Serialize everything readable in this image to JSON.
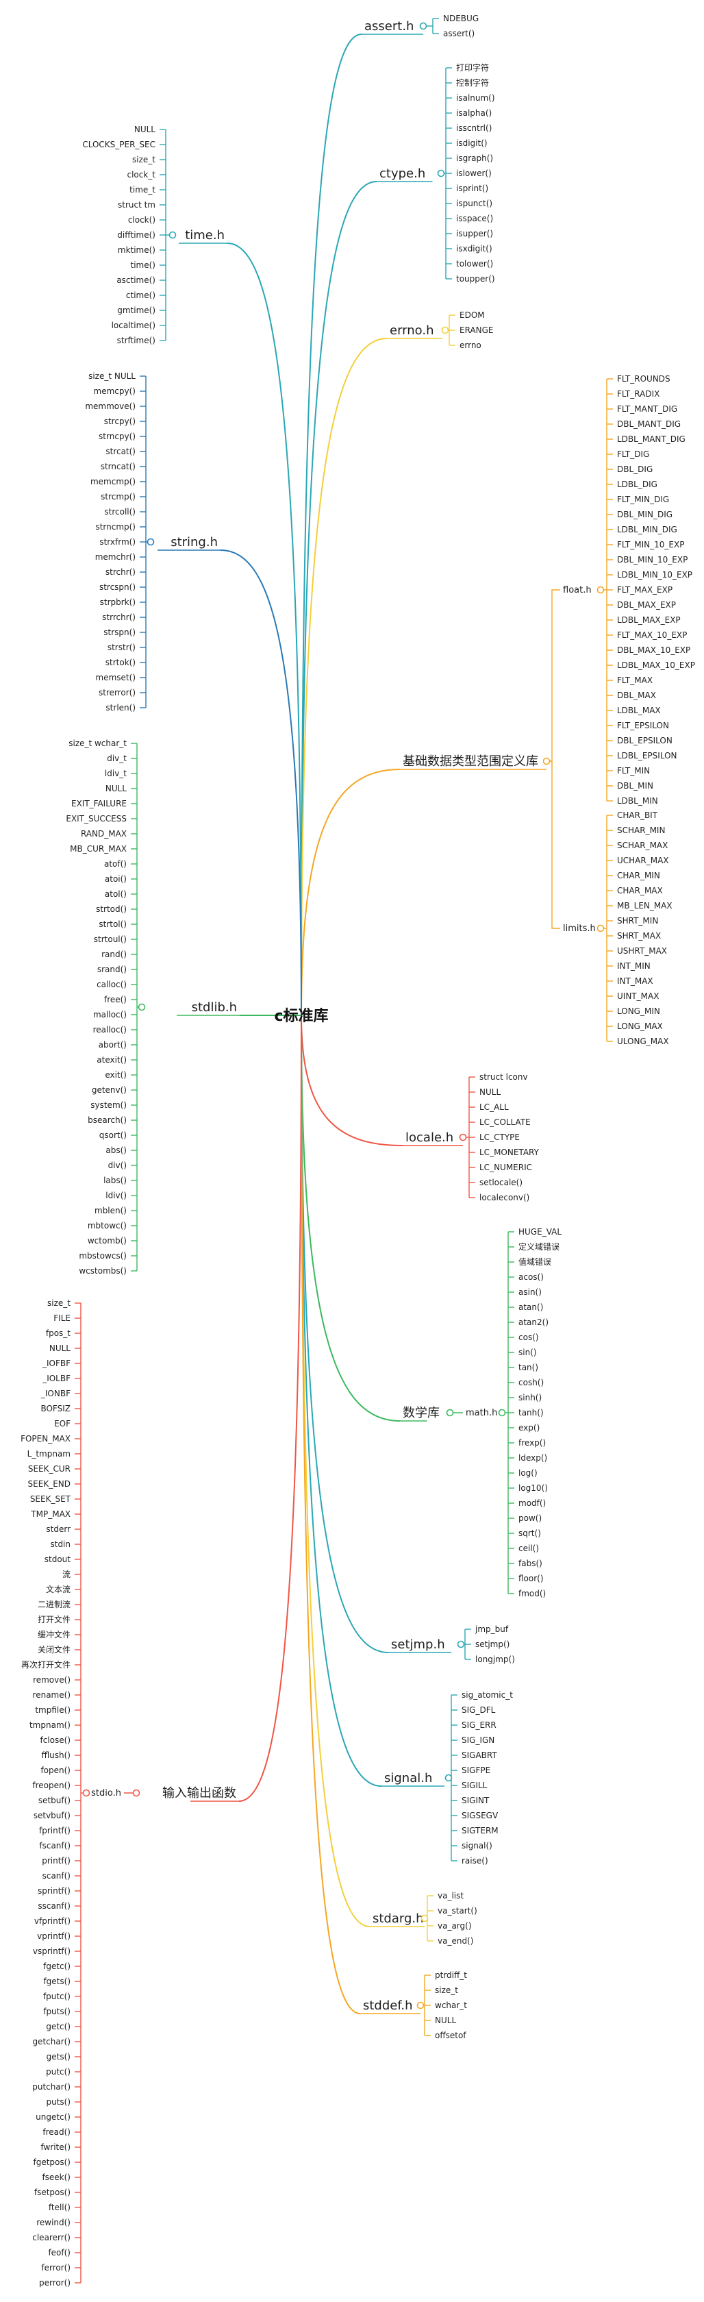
{
  "root": "c标准库",
  "colors": {
    "teal": "#2aa7b5",
    "yellow": "#f4cf3a",
    "orange": "#f5a623",
    "red": "#f05545",
    "green": "#3cb95d"
  },
  "branches": [
    {
      "label": "assert.h",
      "color": "#2aa7b5",
      "items": [
        "NDEBUG",
        "assert()"
      ]
    },
    {
      "label": "ctype.h",
      "color": "#2aa7b5",
      "items": [
        "打印字符",
        "控制字符",
        "isalnum()",
        "isalpha()",
        "isscntrl()",
        "isdigit()",
        "isgraph()",
        "islower()",
        "isprint()",
        "ispunct()",
        "isspace()",
        "isupper()",
        "isxdigit()",
        "tolower()",
        "toupper()"
      ]
    },
    {
      "label": "errno.h",
      "color": "#f4cf3a",
      "items": [
        "EDOM",
        "ERANGE",
        "errno"
      ]
    },
    {
      "label": "基础数据类型范围定义库",
      "color": "#f5a623",
      "subs": [
        {
          "label": "float.h",
          "items": [
            "FLT_ROUNDS",
            "FLT_RADIX",
            "FLT_MANT_DIG",
            "DBL_MANT_DIG",
            "LDBL_MANT_DIG",
            "FLT_DIG",
            "DBL_DIG",
            "LDBL_DIG",
            "FLT_MIN_DIG",
            "DBL_MIN_DIG",
            "LDBL_MIN_DIG",
            "FLT_MIN_10_EXP",
            "DBL_MIN_10_EXP",
            "LDBL_MIN_10_EXP",
            "FLT_MAX_EXP",
            "DBL_MAX_EXP",
            "LDBL_MAX_EXP",
            "FLT_MAX_10_EXP",
            "DBL_MAX_10_EXP",
            "LDBL_MAX_10_EXP",
            "FLT_MAX",
            "DBL_MAX",
            "LDBL_MAX",
            "FLT_EPSILON",
            "DBL_EPSILON",
            "LDBL_EPSILON",
            "FLT_MIN",
            "DBL_MIN",
            "LDBL_MIN"
          ]
        },
        {
          "label": "limits.h",
          "items": [
            "CHAR_BIT",
            "SCHAR_MIN",
            "SCHAR_MAX",
            "UCHAR_MAX",
            "CHAR_MIN",
            "CHAR_MAX",
            "MB_LEN_MAX",
            "SHRT_MIN",
            "SHRT_MAX",
            "USHRT_MAX",
            "INT_MIN",
            "INT_MAX",
            "UINT_MAX",
            "LONG_MIN",
            "LONG_MAX",
            "ULONG_MAX"
          ]
        }
      ]
    },
    {
      "label": "locale.h",
      "color": "#f05545",
      "items": [
        "struct lconv",
        "NULL",
        "LC_ALL",
        "LC_COLLATE",
        "LC_CTYPE",
        "LC_MONETARY",
        "LC_NUMERIC",
        "setlocale()",
        "localeconv()"
      ]
    },
    {
      "label": "数学库",
      "color": "#3cb95d",
      "subs": [
        {
          "label": "math.h",
          "items": [
            "HUGE_VAL",
            "定义域错误",
            "值域错误",
            "acos()",
            "asin()",
            "atan()",
            "atan2()",
            "cos()",
            "sin()",
            "tan()",
            "cosh()",
            "sinh()",
            "tanh()",
            "exp()",
            "frexp()",
            "ldexp()",
            "log()",
            "log10()",
            "modf()",
            "pow()",
            "sqrt()",
            "ceil()",
            "fabs()",
            "floor()",
            "fmod()"
          ]
        }
      ]
    },
    {
      "label": "setjmp.h",
      "color": "#2aa7b5",
      "items": [
        "jmp_buf",
        "setjmp()",
        "longjmp()"
      ]
    },
    {
      "label": "signal.h",
      "color": "#2aa7b5",
      "items": [
        "sig_atomic_t",
        "SIG_DFL",
        "SIG_ERR",
        "SIG_IGN",
        "SIGABRT",
        "SIGFPE",
        "SIGILL",
        "SIGINT",
        "SIGSEGV",
        "SIGTERM",
        "signal()",
        "raise()"
      ]
    },
    {
      "label": "stdarg.h",
      "color": "#f4cf3a",
      "items": [
        "va_list",
        "va_start()",
        "va_arg()",
        "va_end()"
      ]
    },
    {
      "label": "stddef.h",
      "color": "#f5a623",
      "items": [
        "ptrdiff_t",
        "size_t",
        "wchar_t",
        "NULL",
        "offsetof"
      ]
    },
    {
      "label": "time.h",
      "color": "#2aa7b5",
      "items": [
        "NULL",
        "CLOCKS_PER_SEC",
        "size_t",
        "clock_t",
        "time_t",
        "struct tm",
        "clock()",
        "difftime()",
        "mktime()",
        "time()",
        "asctime()",
        "ctime()",
        "gmtime()",
        "localtime()",
        "strftime()"
      ]
    },
    {
      "label": "string.h",
      "color": "#2a7ab5",
      "items": [
        "size_t NULL",
        "memcpy()",
        "memmove()",
        "strcpy()",
        "strncpy()",
        "strcat()",
        "strncat()",
        "memcmp()",
        "strcmp()",
        "strcoll()",
        "strncmp()",
        "strxfrm()",
        "memchr()",
        "strchr()",
        "strcspn()",
        "strpbrk()",
        "strrchr()",
        "strspn()",
        "strstr()",
        "strtok()",
        "memset()",
        "strerror()",
        "strlen()"
      ]
    },
    {
      "label": "stdlib.h",
      "color": "#3cb95d",
      "items": [
        "size_t wchar_t",
        "div_t",
        "ldiv_t",
        "NULL",
        "EXIT_FAILURE",
        "EXIT_SUCCESS",
        "RAND_MAX",
        "MB_CUR_MAX",
        "atof()",
        "atoi()",
        "atol()",
        "strtod()",
        "strtol()",
        "strtoul()",
        "rand()",
        "srand()",
        "calloc()",
        "free()",
        "malloc()",
        "realloc()",
        "abort()",
        "atexit()",
        "exit()",
        "getenv()",
        "system()",
        "bsearch()",
        "qsort()",
        "abs()",
        "div()",
        "labs()",
        "ldiv()",
        "mblen()",
        "mbtowc()",
        "wctomb()",
        "mbstowcs()",
        "wcstombs()"
      ]
    },
    {
      "label": "输入输出函数",
      "color": "#f05545",
      "subs": [
        {
          "label": "stdio.h",
          "items": [
            "size_t",
            "FILE",
            "fpos_t",
            "NULL",
            "_IOFBF",
            "_IOLBF",
            "_IONBF",
            "BOFSIZ",
            "EOF",
            "FOPEN_MAX",
            "L_tmpnam",
            "SEEK_CUR",
            "SEEK_END",
            "SEEK_SET",
            "TMP_MAX",
            "stderr",
            "stdin",
            "stdout",
            "流",
            "文本流",
            "二进制流",
            "打开文件",
            "缓冲文件",
            "关闭文件",
            "再次打开文件",
            "remove()",
            "rename()",
            "tmpfile()",
            "tmpnam()",
            "fclose()",
            "fflush()",
            "fopen()",
            "freopen()",
            "setbuf()",
            "setvbuf()",
            "fprintf()",
            "fscanf()",
            "printf()",
            "scanf()",
            "sprintf()",
            "sscanf()",
            "vfprintf()",
            "vprintf()",
            "vsprintf()",
            "fgetc()",
            "fgets()",
            "fputc()",
            "fputs()",
            "getc()",
            "getchar()",
            "gets()",
            "putc()",
            "putchar()",
            "puts()",
            "ungetc()",
            "fread()",
            "fwrite()",
            "fgetpos()",
            "fseek()",
            "fsetpos()",
            "ftell()",
            "rewind()",
            "clearerr()",
            "feof()",
            "ferror()",
            "perror()"
          ]
        }
      ]
    }
  ]
}
